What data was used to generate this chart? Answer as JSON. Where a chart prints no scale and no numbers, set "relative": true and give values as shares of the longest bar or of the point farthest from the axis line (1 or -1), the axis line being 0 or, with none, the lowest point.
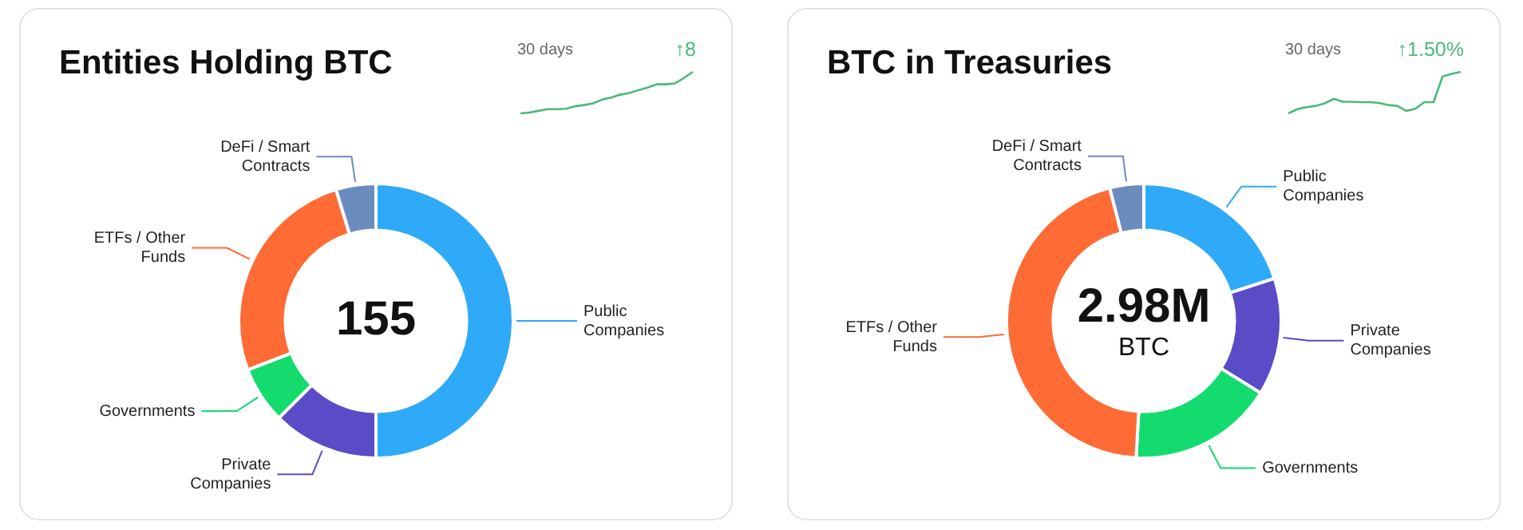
{
  "chart_data": [
    {
      "type": "donut",
      "title": "Entities Holding BTC",
      "categories": [
        "Public Companies",
        "Private Companies",
        "Governments",
        "ETFs / Other Funds",
        "DeFi / Smart Contracts"
      ],
      "values": [
        50,
        12.5,
        6.7,
        26.1,
        4.7
      ],
      "colors": [
        "#2eaaf8",
        "#5a4bc6",
        "#14db6e",
        "#ff6b35",
        "#6b8cbf"
      ],
      "annotations": [
        "155"
      ]
    },
    {
      "type": "line",
      "title": "30 days",
      "annotations": [
        "↑8"
      ],
      "relative": true,
      "tick_labels": false,
      "categories": [
        null,
        null,
        null,
        null,
        null,
        null,
        null,
        null,
        null,
        null,
        null,
        null,
        null,
        null,
        null,
        null,
        null,
        null,
        null,
        null
      ],
      "series": [
        {
          "color": "#4cb87a",
          "values": [
            0,
            0.02,
            0.06,
            0.1,
            0.1,
            0.11,
            0.17,
            0.2,
            0.24,
            0.33,
            0.38,
            0.45,
            0.49,
            0.56,
            0.62,
            0.7,
            0.7,
            0.72,
            0.85,
            1
          ]
        }
      ]
    },
    {
      "type": "donut",
      "title": "BTC in Treasuries",
      "categories": [
        "Public Companies",
        "Private Companies",
        "Governments",
        "ETFs / Other Funds",
        "DeFi / Smart Contracts"
      ],
      "values": [
        20,
        13.8,
        17.1,
        45.1,
        4
      ],
      "colors": [
        "#2eaaf8",
        "#5a4bc6",
        "#14db6e",
        "#ff6b35",
        "#6b8cbf"
      ],
      "annotations": [
        "2.98M",
        "BTC"
      ]
    },
    {
      "type": "line",
      "title": "30 days",
      "annotations": [
        "↑1.50%"
      ],
      "relative": true,
      "tick_labels": false,
      "categories": [
        null,
        null,
        null,
        null,
        null,
        null,
        null,
        null,
        null,
        null,
        null,
        null,
        null,
        null,
        null,
        null,
        null,
        null,
        null,
        null
      ],
      "series": [
        {
          "color": "#4cb87a",
          "values": [
            0,
            0.1,
            0.15,
            0.18,
            0.24,
            0.35,
            0.28,
            0.28,
            0.27,
            0.27,
            0.25,
            0.2,
            0.18,
            0.06,
            0.11,
            0.27,
            0.27,
            0.89,
            0.95,
            1
          ]
        }
      ]
    }
  ]
}
